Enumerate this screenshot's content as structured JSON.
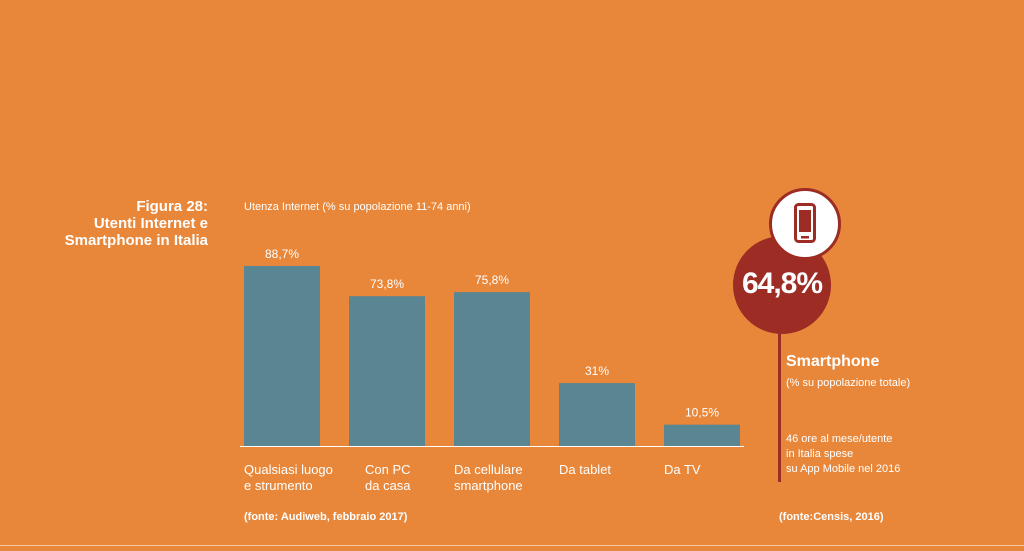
{
  "figure": {
    "title_lines": [
      "Figura 28:",
      "Utenti Internet e",
      "Smartphone in Italia"
    ]
  },
  "chart_data": {
    "type": "bar",
    "title": "Utenza Internet (% su popolazione 11-74 anni)",
    "categories": [
      [
        "Qualsiasi luogo",
        "e strumento"
      ],
      [
        "Con PC",
        "da casa"
      ],
      [
        "Da cellulare",
        "smartphone"
      ],
      [
        "Da tablet"
      ],
      [
        "Da TV"
      ]
    ],
    "values": [
      88.7,
      73.8,
      75.8,
      31,
      10.5
    ],
    "data_labels": [
      "88,7%",
      "73,8%",
      "75,8%",
      "31%",
      "10,5%"
    ],
    "ylim": [
      0,
      100
    ],
    "grid": false,
    "bar_color": "#5A8693"
  },
  "source_left": "(fonte: Audiweb, febbraio 2017)",
  "smartphone": {
    "value": "64,8%",
    "title": "Smartphone",
    "subtitle": "(% su popolazione totale)",
    "note_lines": [
      "46 ore al mese/utente",
      "in Italia spese",
      "su App Mobile nel 2016"
    ],
    "source": "(fonte:Censis, 2016)",
    "accent_color": "#9C2C24",
    "icon": "smartphone-icon"
  }
}
